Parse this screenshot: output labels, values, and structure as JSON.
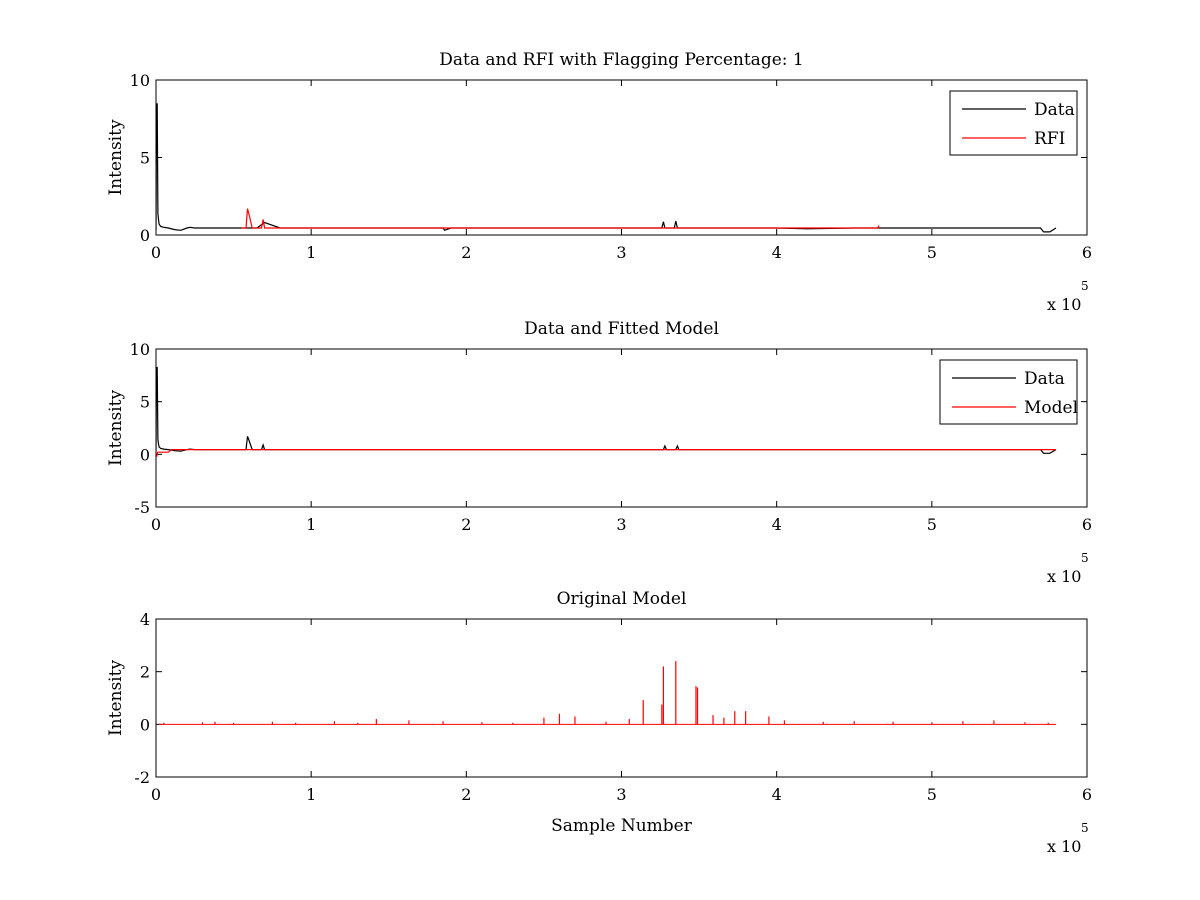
{
  "chart_data": [
    {
      "type": "line",
      "title": "Data and RFI with Flagging Percentage: 1",
      "xlabel": "",
      "ylabel": "Intensity",
      "xlim": [
        0,
        6
      ],
      "ylim": [
        0,
        10
      ],
      "x_ticks": [
        "0",
        "1",
        "2",
        "3",
        "4",
        "5",
        "6"
      ],
      "y_ticks": [
        "0",
        "5",
        "10"
      ],
      "x_multiplier_base": "x 10",
      "x_multiplier_exp": "5",
      "legend_location": "top-right",
      "series": [
        {
          "name": "Data",
          "color": "#000000",
          "x": [
            0,
            0.003,
            0.008,
            0.012,
            0.016,
            0.02,
            0.03,
            0.05,
            0.08,
            0.12,
            0.16,
            0.2,
            0.22,
            0.25,
            0.3,
            0.5,
            0.65,
            0.7,
            0.8,
            1.0,
            1.5,
            1.85,
            1.86,
            1.9,
            2.0,
            2.5,
            3.0,
            3.26,
            3.27,
            3.28,
            3.34,
            3.35,
            3.36,
            3.5,
            4.0,
            4.2,
            4.5,
            5.0,
            5.5,
            5.7,
            5.72,
            5.76,
            5.8
          ],
          "y": [
            0.3,
            7.8,
            8.5,
            1.4,
            1.0,
            0.7,
            0.55,
            0.5,
            0.45,
            0.35,
            0.3,
            0.45,
            0.5,
            0.45,
            0.45,
            0.45,
            0.45,
            0.8,
            0.45,
            0.45,
            0.45,
            0.45,
            0.3,
            0.45,
            0.45,
            0.45,
            0.45,
            0.45,
            0.85,
            0.45,
            0.45,
            0.9,
            0.45,
            0.45,
            0.45,
            0.4,
            0.45,
            0.45,
            0.45,
            0.45,
            0.2,
            0.2,
            0.45
          ]
        },
        {
          "name": "RFI",
          "color": "#ff0000",
          "x": [
            0.55,
            0.58,
            0.59,
            0.6,
            0.62,
            0.68,
            0.69,
            0.7,
            4.65,
            4.66
          ],
          "y": [
            0.45,
            0.45,
            1.7,
            1.3,
            0.45,
            0.45,
            1.0,
            0.45,
            0.45,
            0.6
          ]
        }
      ]
    },
    {
      "type": "line",
      "title": "Data and Fitted Model",
      "xlabel": "",
      "ylabel": "Intensity",
      "xlim": [
        0,
        6
      ],
      "ylim": [
        -5,
        10
      ],
      "x_ticks": [
        "0",
        "1",
        "2",
        "3",
        "4",
        "5",
        "6"
      ],
      "y_ticks": [
        "-5",
        "0",
        "5",
        "10"
      ],
      "x_multiplier_base": "x 10",
      "x_multiplier_exp": "5",
      "legend_location": "top-right",
      "series": [
        {
          "name": "Data",
          "color": "#000000",
          "x": [
            0,
            0.003,
            0.008,
            0.012,
            0.016,
            0.02,
            0.03,
            0.05,
            0.08,
            0.12,
            0.16,
            0.2,
            0.22,
            0.25,
            0.5,
            0.58,
            0.59,
            0.6,
            0.62,
            0.68,
            0.69,
            0.7,
            1.0,
            2.0,
            3.0,
            3.27,
            3.28,
            3.29,
            3.35,
            3.36,
            3.37,
            4.0,
            5.0,
            5.7,
            5.72,
            5.76,
            5.8
          ],
          "y": [
            0.3,
            7.8,
            8.3,
            1.4,
            1.0,
            0.7,
            0.55,
            0.5,
            0.45,
            0.35,
            0.3,
            0.45,
            0.5,
            0.45,
            0.45,
            0.45,
            1.7,
            1.3,
            0.45,
            0.45,
            0.9,
            0.45,
            0.45,
            0.45,
            0.45,
            0.45,
            0.8,
            0.45,
            0.45,
            0.8,
            0.45,
            0.45,
            0.45,
            0.45,
            0.1,
            0.1,
            0.45
          ]
        },
        {
          "name": "Model",
          "color": "#ff0000",
          "x": [
            0,
            0.005,
            0.01,
            0.08,
            0.1,
            1.0,
            2.0,
            3.0,
            4.0,
            5.0,
            5.8
          ],
          "y": [
            -0.2,
            -0.2,
            0.2,
            0.2,
            0.45,
            0.45,
            0.45,
            0.45,
            0.45,
            0.45,
            0.45
          ]
        }
      ]
    },
    {
      "type": "line",
      "title": "Original Model",
      "xlabel": "Sample Number",
      "ylabel": "Intensity",
      "xlim": [
        0,
        6
      ],
      "ylim": [
        -2,
        4
      ],
      "x_ticks": [
        "0",
        "1",
        "2",
        "3",
        "4",
        "5",
        "6"
      ],
      "y_ticks": [
        "-2",
        "0",
        "2",
        "4"
      ],
      "x_multiplier_base": "x 10",
      "x_multiplier_exp": "5",
      "series": [
        {
          "color": "#ff0000",
          "spikes": [
            [
              0.05,
              0.06
            ],
            [
              0.3,
              0.08
            ],
            [
              0.38,
              0.1
            ],
            [
              0.5,
              0.06
            ],
            [
              0.75,
              0.1
            ],
            [
              0.9,
              0.06
            ],
            [
              1.15,
              0.12
            ],
            [
              1.3,
              0.06
            ],
            [
              1.42,
              0.2
            ],
            [
              1.63,
              0.15
            ],
            [
              1.85,
              0.12
            ],
            [
              2.1,
              0.08
            ],
            [
              2.3,
              0.06
            ],
            [
              2.5,
              0.25
            ],
            [
              2.6,
              0.4
            ],
            [
              2.7,
              0.3
            ],
            [
              2.9,
              0.1
            ],
            [
              3.05,
              0.2
            ],
            [
              3.14,
              0.92
            ],
            [
              3.26,
              0.75
            ],
            [
              3.27,
              2.2
            ],
            [
              3.35,
              2.4
            ],
            [
              3.48,
              1.45
            ],
            [
              3.49,
              1.4
            ],
            [
              3.59,
              0.35
            ],
            [
              3.66,
              0.25
            ],
            [
              3.73,
              0.5
            ],
            [
              3.8,
              0.5
            ],
            [
              3.95,
              0.3
            ],
            [
              4.05,
              0.15
            ],
            [
              4.3,
              0.1
            ],
            [
              4.5,
              0.12
            ],
            [
              4.75,
              0.1
            ],
            [
              5.0,
              0.08
            ],
            [
              5.2,
              0.12
            ],
            [
              5.4,
              0.15
            ],
            [
              5.6,
              0.08
            ],
            [
              5.75,
              0.06
            ]
          ]
        }
      ]
    }
  ]
}
